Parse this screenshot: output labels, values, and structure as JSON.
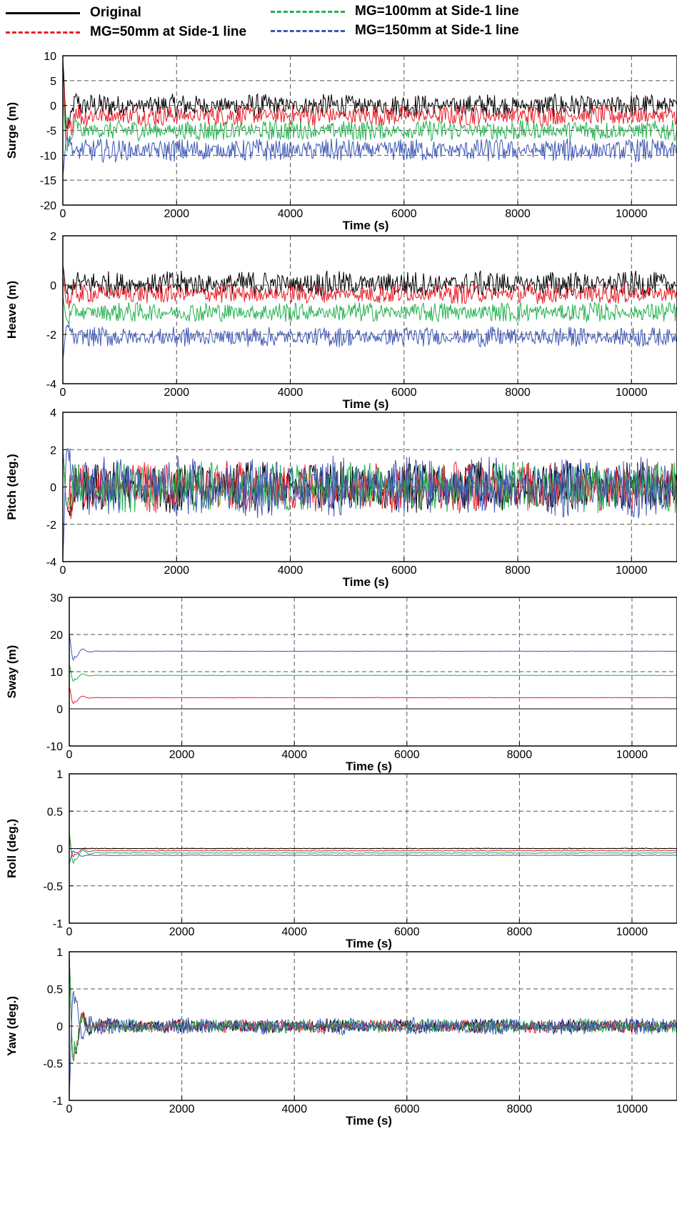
{
  "legend": [
    {
      "label": "Original",
      "color": "#000000",
      "style": "solid"
    },
    {
      "label": "MG=100mm at Side-1 line",
      "color": "#22b14c",
      "style": "dash-dot"
    },
    {
      "label": "MG=50mm at Side-1 line",
      "color": "#e8202a",
      "style": "dash-dot"
    },
    {
      "label": "MG=150mm at Side-1 line",
      "color": "#3f57b4",
      "style": "dash-dot"
    }
  ],
  "chart_data": [
    {
      "type": "line",
      "ylabel": "Surge (m)",
      "xlabel": "Time (s)",
      "xlim": [
        0,
        10800
      ],
      "ylim": [
        -20,
        10
      ],
      "xticks": [
        0,
        2000,
        4000,
        6000,
        8000,
        10000
      ],
      "yticks": [
        -20,
        -15,
        -10,
        -5,
        0,
        5,
        10
      ],
      "grid": true,
      "series": [
        {
          "name": "Original",
          "color": "#000000",
          "mean": 0,
          "amp": 2.0,
          "startPeak": 9
        },
        {
          "name": "MG=50mm at Side-1 line",
          "color": "#e8202a",
          "mean": -2,
          "amp": 1.8,
          "startPeak": 7
        },
        {
          "name": "MG=100mm at Side-1 line",
          "color": "#22b14c",
          "mean": -5,
          "amp": 1.8,
          "startPeak": 3
        },
        {
          "name": "MG=150mm at Side-1 line",
          "color": "#3f57b4",
          "mean": -9,
          "amp": 2.0,
          "startPeak": -14
        }
      ]
    },
    {
      "type": "line",
      "ylabel": "Heave (m)",
      "xlabel": "Time (s)",
      "xlim": [
        0,
        10800
      ],
      "ylim": [
        -4,
        2
      ],
      "xticks": [
        0,
        2000,
        4000,
        6000,
        8000,
        10000
      ],
      "yticks": [
        -4,
        -2,
        0,
        2
      ],
      "grid": true,
      "series": [
        {
          "name": "Original",
          "color": "#000000",
          "mean": 0.05,
          "amp": 0.45,
          "startPeak": 0.8
        },
        {
          "name": "MG=50mm at Side-1 line",
          "color": "#e8202a",
          "mean": -0.35,
          "amp": 0.35,
          "startPeak": 0.4
        },
        {
          "name": "MG=100mm at Side-1 line",
          "color": "#22b14c",
          "mean": -1.1,
          "amp": 0.35,
          "startPeak": -0.5
        },
        {
          "name": "MG=150mm at Side-1 line",
          "color": "#3f57b4",
          "mean": -2.1,
          "amp": 0.35,
          "startPeak": -3.0
        }
      ]
    },
    {
      "type": "line",
      "ylabel": "Pitch (deg.)",
      "xlabel": "Time (s)",
      "xlim": [
        0,
        10800
      ],
      "ylim": [
        -4,
        4
      ],
      "xticks": [
        0,
        2000,
        4000,
        6000,
        8000,
        10000
      ],
      "yticks": [
        -4,
        -2,
        0,
        2,
        4
      ],
      "grid": true,
      "series": [
        {
          "name": "Original",
          "color": "#000000",
          "mean": 0,
          "amp": 1.2,
          "startPeak": 2
        },
        {
          "name": "MG=50mm at Side-1 line",
          "color": "#e8202a",
          "mean": 0,
          "amp": 1.2,
          "startPeak": 2
        },
        {
          "name": "MG=100mm at Side-1 line",
          "color": "#22b14c",
          "mean": 0,
          "amp": 1.2,
          "startPeak": 2
        },
        {
          "name": "MG=150mm at Side-1 line",
          "color": "#3f57b4",
          "mean": 0,
          "amp": 1.4,
          "startPeak": -3.8
        }
      ]
    },
    {
      "type": "line",
      "ylabel": "Sway (m)",
      "xlabel": "Time (s)",
      "xlim": [
        0,
        10800
      ],
      "ylim": [
        -10,
        30
      ],
      "xticks": [
        0,
        2000,
        4000,
        6000,
        8000,
        10000
      ],
      "yticks": [
        -10,
        0,
        10,
        20,
        30
      ],
      "grid": true,
      "series": [
        {
          "name": "Original",
          "color": "#000000",
          "mean": 0,
          "amp": 0,
          "startPeak": 0
        },
        {
          "name": "MG=50mm at Side-1 line",
          "color": "#e8202a",
          "mean": 3,
          "amp": 0.05,
          "startPeak": 6
        },
        {
          "name": "MG=100mm at Side-1 line",
          "color": "#22b14c",
          "mean": 9,
          "amp": 0.05,
          "startPeak": 12
        },
        {
          "name": "MG=150mm at Side-1 line",
          "color": "#3f57b4",
          "mean": 15.5,
          "amp": 0.05,
          "startPeak": 20
        }
      ]
    },
    {
      "type": "line",
      "ylabel": "Roll (deg.)",
      "xlabel": "Time (s)",
      "xlim": [
        0,
        10800
      ],
      "ylim": [
        -1,
        1
      ],
      "xticks": [
        0,
        2000,
        4000,
        6000,
        8000,
        10000
      ],
      "yticks": [
        -1,
        -0.5,
        0,
        0.5,
        1
      ],
      "grid": true,
      "series": [
        {
          "name": "Original",
          "color": "#000000",
          "mean": 0,
          "amp": 0.005,
          "startPeak": 0
        },
        {
          "name": "MG=50mm at Side-1 line",
          "color": "#e8202a",
          "mean": -0.03,
          "amp": 0.005,
          "startPeak": 0.12
        },
        {
          "name": "MG=100mm at Side-1 line",
          "color": "#22b14c",
          "mean": -0.06,
          "amp": 0.005,
          "startPeak": 0.2
        },
        {
          "name": "MG=150mm at Side-1 line",
          "color": "#3f57b4",
          "mean": -0.09,
          "amp": 0.005,
          "startPeak": -0.2
        }
      ]
    },
    {
      "type": "line",
      "ylabel": "Yaw (deg.)",
      "xlabel": "Time (s)",
      "xlim": [
        0,
        10800
      ],
      "ylim": [
        -1,
        1
      ],
      "xticks": [
        0,
        2000,
        4000,
        6000,
        8000,
        10000
      ],
      "yticks": [
        -1,
        -0.5,
        0,
        0.5,
        1
      ],
      "grid": true,
      "series": [
        {
          "name": "Original",
          "color": "#000000",
          "mean": 0,
          "amp": 0.08,
          "startPeak": 0.9
        },
        {
          "name": "MG=50mm at Side-1 line",
          "color": "#e8202a",
          "mean": 0,
          "amp": 0.08,
          "startPeak": 0.9
        },
        {
          "name": "MG=100mm at Side-1 line",
          "color": "#22b14c",
          "mean": 0,
          "amp": 0.08,
          "startPeak": 0.9
        },
        {
          "name": "MG=150mm at Side-1 line",
          "color": "#3f57b4",
          "mean": 0,
          "amp": 0.1,
          "startPeak": -0.9
        }
      ]
    }
  ]
}
